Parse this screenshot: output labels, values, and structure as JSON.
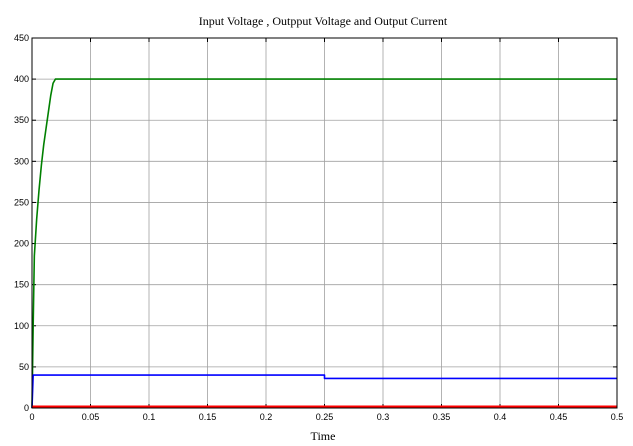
{
  "chart_data": {
    "type": "line",
    "title": "Input Voltage , Outpput Voltage and Output Current",
    "xlabel": "Time",
    "ylabel": "",
    "xlim": [
      0,
      0.5
    ],
    "ylim": [
      0,
      450
    ],
    "xticks": [
      "0",
      "0.05",
      "0.1",
      "0.15",
      "0.2",
      "0.25",
      "0.3",
      "0.35",
      "0.4",
      "0.45",
      "0.5"
    ],
    "yticks": [
      "0",
      "50",
      "100",
      "150",
      "200",
      "250",
      "300",
      "350",
      "400",
      "450"
    ],
    "grid": true,
    "series": [
      {
        "color": "#008000",
        "x": [
          0,
          0.001,
          0.002,
          0.004,
          0.006,
          0.008,
          0.01,
          0.012,
          0.014,
          0.016,
          0.018,
          0.02,
          0.1,
          0.2,
          0.3,
          0.4,
          0.5
        ],
        "y": [
          0,
          100,
          185,
          230,
          265,
          295,
          320,
          340,
          360,
          380,
          395,
          400,
          400,
          400,
          400,
          400,
          400
        ]
      },
      {
        "color": "#0000ff",
        "x": [
          0,
          0.001,
          0.25,
          0.25,
          0.5
        ],
        "y": [
          0,
          40,
          40,
          36,
          36
        ]
      },
      {
        "color": "#ff0000",
        "x": [
          0,
          0.5
        ],
        "y": [
          1.5,
          1.5
        ]
      }
    ]
  }
}
